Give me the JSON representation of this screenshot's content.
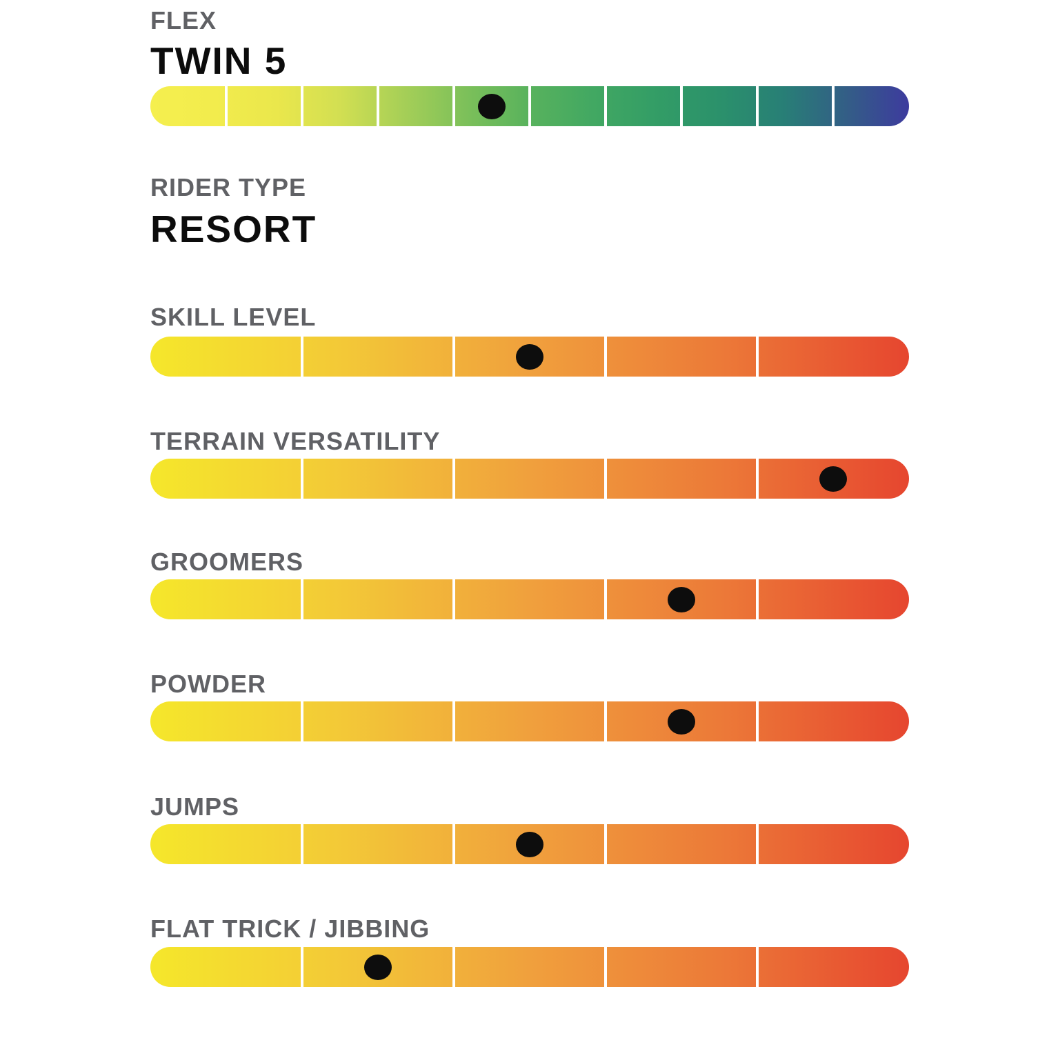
{
  "colors": {
    "background": "#ffffff",
    "label": "#606165",
    "title": "#0c0c0c",
    "dot": "#0d0d0d",
    "divider": "#ffffff"
  },
  "chart_data": {
    "type": "bar",
    "description_of_encoding": "horizontal segmented rating scales; black dot marks the value segment",
    "palettes": {
      "flex": [
        "#F5EF4E",
        "#F2EC4D",
        "#EAE74C",
        "#D2DF52",
        "#A6CF57",
        "#7CC05A",
        "#58B25D",
        "#42A862",
        "#339D66",
        "#2B916B",
        "#287F76",
        "#335E86",
        "#3D3B9E"
      ],
      "rating": [
        "#F5E72B",
        "#F3C937",
        "#F0A03D",
        "#EC7A38",
        "#E6462F"
      ]
    },
    "rows": [
      {
        "kind": "scale",
        "label": "FLEX",
        "value_label": "TWIN 5",
        "segments": 10,
        "value": 5,
        "palette": "flex"
      },
      {
        "kind": "text",
        "label": "RIDER TYPE",
        "value_label": "RESORT"
      },
      {
        "kind": "scale",
        "label": "SKILL LEVEL",
        "segments": 5,
        "value": 3,
        "palette": "rating"
      },
      {
        "kind": "scale",
        "label": "TERRAIN VERSATILITY",
        "segments": 5,
        "value": 5,
        "palette": "rating"
      },
      {
        "kind": "scale",
        "label": "GROOMERS",
        "segments": 5,
        "value": 4,
        "palette": "rating"
      },
      {
        "kind": "scale",
        "label": "POWDER",
        "segments": 5,
        "value": 4,
        "palette": "rating"
      },
      {
        "kind": "scale",
        "label": "JUMPS",
        "segments": 5,
        "value": 3,
        "palette": "rating"
      },
      {
        "kind": "scale",
        "label": "FLAT TRICK / JIBBING",
        "segments": 5,
        "value": 2,
        "palette": "rating"
      }
    ]
  }
}
